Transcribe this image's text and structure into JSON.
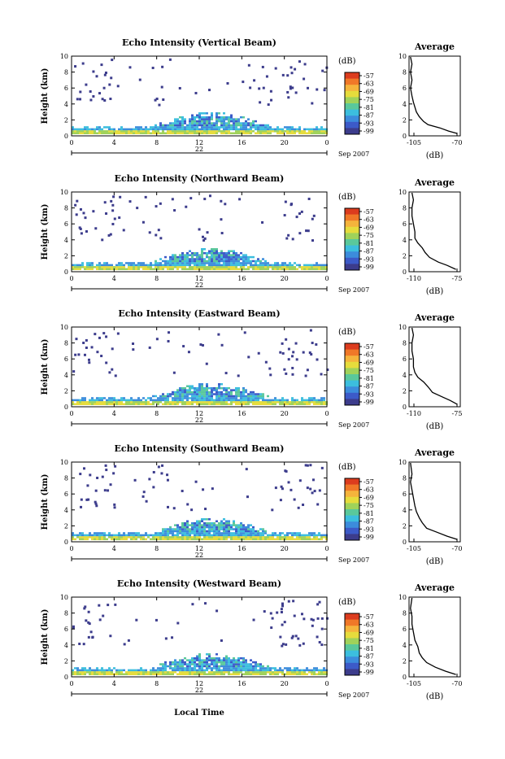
{
  "figure": {
    "xlabel": "Local Time",
    "colorbar_unit": "(dB)",
    "colorbar_ticks": [
      "-57",
      "-63",
      "-69",
      "-75",
      "-81",
      "-87",
      "-93",
      "-99"
    ],
    "colorbar_colors": [
      "#dc3c1e",
      "#f07828",
      "#f5b43c",
      "#e6dc3c",
      "#a0d25a",
      "#5ac89b",
      "#3cbede",
      "#3c8cdc",
      "#3c5ac8",
      "#3c3c8c"
    ]
  },
  "chart_data": [
    {
      "type": "heatmap",
      "title": "Echo Intensity (Vertical Beam)",
      "ylabel": "Height (km)",
      "yticks": [
        "0",
        "2",
        "4",
        "6",
        "8",
        "10"
      ],
      "xticks": [
        "0",
        "4",
        "8",
        "12",
        "16",
        "20",
        "0"
      ],
      "ylim": [
        0,
        10
      ],
      "xlim": [
        0,
        24
      ],
      "date_day": "22",
      "date_month_year": "Sep 2007",
      "profile": {
        "title": "Average",
        "xlabel": "(dB)",
        "xlim": [
          -105,
          -70
        ],
        "xtick_labels": [
          "-105",
          "-70"
        ],
        "yticks": [
          "0",
          "2",
          "4",
          "6",
          "8",
          "10"
        ],
        "points": [
          [
            -72,
            0.3
          ],
          [
            -78,
            0.6
          ],
          [
            -84,
            1.0
          ],
          [
            -92,
            1.4
          ],
          [
            -95,
            1.8
          ],
          [
            -98,
            2.4
          ],
          [
            -100,
            3.0
          ],
          [
            -101,
            3.6
          ],
          [
            -102,
            4.2
          ],
          [
            -103,
            5.0
          ],
          [
            -104,
            6.0
          ],
          [
            -103,
            7.0
          ],
          [
            -104,
            8.0
          ],
          [
            -103,
            9.0
          ],
          [
            -104,
            9.9
          ]
        ]
      }
    },
    {
      "type": "heatmap",
      "title": "Echo Intensity (Northward Beam)",
      "ylabel": "Height (km)",
      "yticks": [
        "0",
        "2",
        "4",
        "6",
        "8",
        "10"
      ],
      "xticks": [
        "0",
        "4",
        "8",
        "12",
        "16",
        "20",
        "0"
      ],
      "ylim": [
        0,
        10
      ],
      "xlim": [
        0,
        24
      ],
      "date_day": "22",
      "date_month_year": "Sep 2007",
      "profile": {
        "title": "Average",
        "xlabel": "(dB)",
        "xlim": [
          -110,
          -75
        ],
        "xtick_labels": [
          "-110",
          "-75"
        ],
        "yticks": [
          "0",
          "2",
          "4",
          "6",
          "8",
          "10"
        ],
        "points": [
          [
            -78,
            0.3
          ],
          [
            -84,
            0.8
          ],
          [
            -90,
            1.2
          ],
          [
            -96,
            1.8
          ],
          [
            -99,
            2.4
          ],
          [
            -101,
            3.0
          ],
          [
            -104,
            3.6
          ],
          [
            -106,
            4.2
          ],
          [
            -106,
            5.0
          ],
          [
            -107,
            6.0
          ],
          [
            -108,
            7.0
          ],
          [
            -108,
            8.0
          ],
          [
            -107,
            9.0
          ],
          [
            -108,
            9.9
          ]
        ]
      }
    },
    {
      "type": "heatmap",
      "title": "Echo Intensity (Eastward Beam)",
      "ylabel": "Height (km)",
      "yticks": [
        "0",
        "2",
        "4",
        "6",
        "8",
        "10"
      ],
      "xticks": [
        "0",
        "4",
        "8",
        "12",
        "16",
        "20",
        "0"
      ],
      "ylim": [
        0,
        10
      ],
      "xlim": [
        0,
        24
      ],
      "date_day": "22",
      "date_month_year": "Sep 2007",
      "profile": {
        "title": "Average",
        "xlabel": "(dB)",
        "xlim": [
          -110,
          -75
        ],
        "xtick_labels": [
          "-110",
          "-75"
        ],
        "yticks": [
          "0",
          "2",
          "4",
          "6",
          "8",
          "10"
        ],
        "points": [
          [
            -77,
            0.3
          ],
          [
            -82,
            0.8
          ],
          [
            -88,
            1.3
          ],
          [
            -94,
            1.8
          ],
          [
            -97,
            2.5
          ],
          [
            -100,
            3.1
          ],
          [
            -104,
            3.7
          ],
          [
            -106,
            4.3
          ],
          [
            -107,
            5.0
          ],
          [
            -107,
            6.0
          ],
          [
            -108,
            7.0
          ],
          [
            -108,
            8.0
          ],
          [
            -107,
            9.0
          ],
          [
            -108,
            9.9
          ]
        ]
      }
    },
    {
      "type": "heatmap",
      "title": "Echo Intensity (Southward Beam)",
      "ylabel": "Height (km)",
      "yticks": [
        "0",
        "2",
        "4",
        "6",
        "8",
        "10"
      ],
      "xticks": [
        "0",
        "4",
        "8",
        "12",
        "16",
        "20",
        "0"
      ],
      "ylim": [
        0,
        10
      ],
      "xlim": [
        0,
        24
      ],
      "date_day": "22",
      "date_month_year": "Sep 2007",
      "profile": {
        "title": "Average",
        "xlabel": "(dB)",
        "xlim": [
          -105,
          -70
        ],
        "xtick_labels": [
          "-105",
          "-70"
        ],
        "yticks": [
          "0",
          "2",
          "4",
          "6",
          "8",
          "10"
        ],
        "points": [
          [
            -72,
            0.3
          ],
          [
            -79,
            0.7
          ],
          [
            -86,
            1.2
          ],
          [
            -93,
            1.7
          ],
          [
            -96,
            2.4
          ],
          [
            -98,
            3.0
          ],
          [
            -100,
            3.8
          ],
          [
            -101,
            4.5
          ],
          [
            -102,
            5.5
          ],
          [
            -103,
            6.5
          ],
          [
            -104,
            7.5
          ],
          [
            -103,
            8.5
          ],
          [
            -104,
            9.9
          ]
        ]
      }
    },
    {
      "type": "heatmap",
      "title": "Echo Intensity (Westward Beam)",
      "ylabel": "Height (km)",
      "yticks": [
        "0",
        "2",
        "4",
        "6",
        "8",
        "10"
      ],
      "xticks": [
        "0",
        "4",
        "8",
        "12",
        "16",
        "20",
        "0"
      ],
      "ylim": [
        0,
        10
      ],
      "xlim": [
        0,
        24
      ],
      "date_day": "22",
      "date_month_year": "Sep 2007",
      "profile": {
        "title": "Average",
        "xlabel": "(dB)",
        "xlim": [
          -105,
          -70
        ],
        "xtick_labels": [
          "-105",
          "-70"
        ],
        "yticks": [
          "0",
          "2",
          "4",
          "6",
          "8",
          "10"
        ],
        "points": [
          [
            -73,
            0.3
          ],
          [
            -80,
            0.7
          ],
          [
            -87,
            1.2
          ],
          [
            -93,
            1.8
          ],
          [
            -96,
            2.4
          ],
          [
            -98,
            3.0
          ],
          [
            -99,
            3.8
          ],
          [
            -101,
            4.6
          ],
          [
            -102,
            5.6
          ],
          [
            -103,
            6.6
          ],
          [
            -103,
            7.6
          ],
          [
            -104,
            8.6
          ],
          [
            -103,
            9.9
          ]
        ]
      }
    }
  ]
}
